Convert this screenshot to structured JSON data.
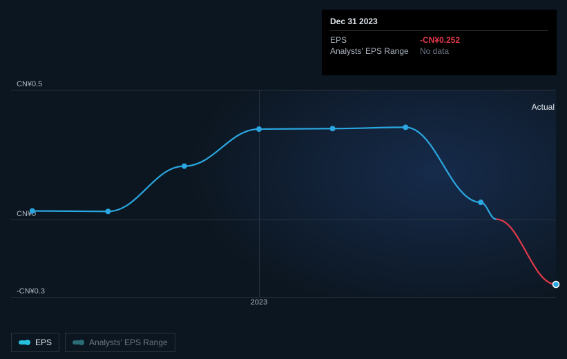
{
  "chart": {
    "type": "line",
    "background_color": "#0c1620",
    "grid_color": "#2a3440",
    "text_color": "#aeb7c2",
    "region_label": "Actual",
    "y_axis": {
      "min": -0.3,
      "max": 0.5,
      "ticks": [
        {
          "value": 0.5,
          "label": "CN¥0.5"
        },
        {
          "value": 0.0,
          "label": "CN¥0"
        },
        {
          "value": -0.3,
          "label": "-CN¥0.3"
        }
      ]
    },
    "x_axis": {
      "ticks": [
        {
          "frac": 0.455,
          "label": "2023"
        }
      ],
      "vlines": [
        {
          "frac": 0.455
        }
      ]
    },
    "series": {
      "eps": {
        "label": "EPS",
        "color": "#2aa7e0",
        "neg_color": "#e0394a",
        "line_width": 2.2,
        "marker_radius": 4,
        "points": [
          {
            "x": 0.039,
            "y": 0.032
          },
          {
            "x": 0.178,
            "y": 0.03
          },
          {
            "x": 0.318,
            "y": 0.205
          },
          {
            "x": 0.455,
            "y": 0.348
          },
          {
            "x": 0.59,
            "y": 0.35
          },
          {
            "x": 0.724,
            "y": 0.355
          },
          {
            "x": 0.862,
            "y": 0.065
          },
          {
            "x": 1.0,
            "y": -0.252
          }
        ]
      },
      "analysts_range": {
        "label": "Analysts' EPS Range",
        "color": "#2b6d77",
        "inactive": true
      }
    }
  },
  "tooltip": {
    "date": "Dec 31 2023",
    "rows": [
      {
        "label": "EPS",
        "value": "-CN¥0.252",
        "style": "neg"
      },
      {
        "label": "Analysts' EPS Range",
        "value": "No data",
        "style": "muted"
      }
    ]
  },
  "legend": {
    "items": [
      {
        "key": "eps",
        "label": "EPS",
        "color": "#26c0de",
        "inactive": false
      },
      {
        "key": "analysts_range",
        "label": "Analysts' EPS Range",
        "color": "#2b6d77",
        "inactive": true
      }
    ]
  }
}
